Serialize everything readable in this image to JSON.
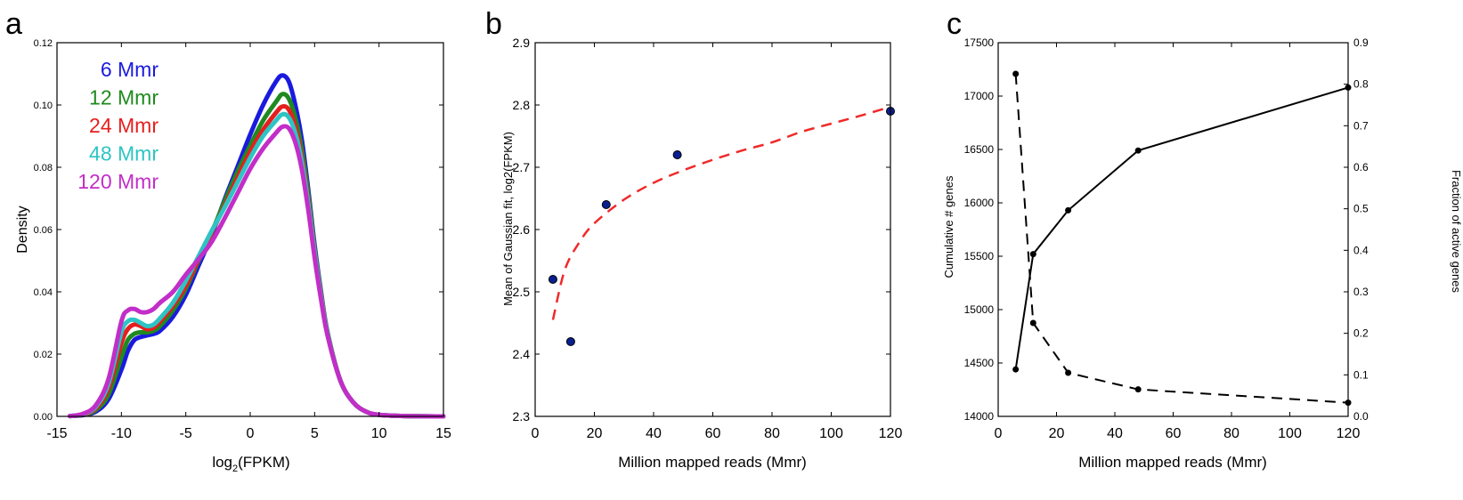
{
  "chart_data": [
    {
      "panel_letter": "a",
      "type": "line",
      "xlabel_base": "log",
      "xlabel_sub": "2",
      "xlabel_rest": "(FPKM)",
      "ylabel": "Density",
      "xlim": [
        -15,
        15
      ],
      "ylim": [
        0,
        0.12
      ],
      "xticks": [
        -15,
        -10,
        -5,
        0,
        5,
        10,
        15
      ],
      "yticks": [
        "0.00",
        "0.02",
        "0.04",
        "0.06",
        "0.08",
        "0.10",
        "0.12"
      ],
      "x": [
        -14,
        -13,
        -12,
        -11,
        -10,
        -9.5,
        -9,
        -8.5,
        -8,
        -7.5,
        -7,
        -6,
        -5,
        -4,
        -3,
        -2,
        -1,
        0,
        1,
        2,
        2.5,
        3,
        3.5,
        4,
        4.5,
        5,
        5.5,
        6,
        7,
        8,
        9,
        10,
        12,
        15
      ],
      "series": [
        {
          "name": "6 Mmr",
          "color": "#1a1adf",
          "values": [
            0.0001,
            0.0004,
            0.0015,
            0.0055,
            0.015,
            0.021,
            0.0245,
            0.0255,
            0.026,
            0.0265,
            0.0275,
            0.032,
            0.039,
            0.0485,
            0.058,
            0.0695,
            0.08,
            0.0905,
            0.1,
            0.1075,
            0.1095,
            0.1075,
            0.1,
            0.089,
            0.073,
            0.055,
            0.04,
            0.027,
            0.0115,
            0.0045,
            0.0015,
            0.0005,
            0.0001,
            0.0
          ]
        },
        {
          "name": "12 Mmr",
          "color": "#1f8a1f",
          "values": [
            0.0001,
            0.0005,
            0.002,
            0.007,
            0.019,
            0.0245,
            0.0265,
            0.027,
            0.027,
            0.0275,
            0.029,
            0.034,
            0.041,
            0.05,
            0.059,
            0.069,
            0.0785,
            0.087,
            0.095,
            0.101,
            0.1035,
            0.102,
            0.096,
            0.086,
            0.0715,
            0.054,
            0.0395,
            0.027,
            0.0115,
            0.0045,
            0.0015,
            0.0005,
            0.0001,
            0.0
          ]
        },
        {
          "name": "24 Mmr",
          "color": "#e61e1e",
          "values": [
            0.0001,
            0.0006,
            0.0025,
            0.009,
            0.0235,
            0.028,
            0.0295,
            0.029,
            0.028,
            0.0285,
            0.0305,
            0.0355,
            0.042,
            0.0505,
            0.059,
            0.0675,
            0.0765,
            0.085,
            0.092,
            0.0975,
            0.0995,
            0.0985,
            0.093,
            0.0835,
            0.0695,
            0.053,
            0.039,
            0.0265,
            0.0115,
            0.0045,
            0.0015,
            0.0005,
            0.0001,
            0.0
          ]
        },
        {
          "name": "48 Mmr",
          "color": "#2ec4c4",
          "values": [
            0.0001,
            0.0007,
            0.003,
            0.0105,
            0.027,
            0.0305,
            0.031,
            0.03,
            0.029,
            0.0295,
            0.0315,
            0.0365,
            0.0435,
            0.0515,
            0.0595,
            0.067,
            0.075,
            0.083,
            0.09,
            0.095,
            0.097,
            0.096,
            0.091,
            0.082,
            0.0685,
            0.0525,
            0.0385,
            0.0265,
            0.0115,
            0.0045,
            0.0015,
            0.0005,
            0.0001,
            0.0
          ]
        },
        {
          "name": "120 Mmr",
          "color": "#c22ec7",
          "values": [
            0.0001,
            0.0008,
            0.0035,
            0.012,
            0.0305,
            0.034,
            0.0345,
            0.0335,
            0.0335,
            0.0345,
            0.0365,
            0.04,
            0.0455,
            0.0505,
            0.056,
            0.0635,
            0.0715,
            0.0795,
            0.086,
            0.091,
            0.093,
            0.0925,
            0.088,
            0.0795,
            0.0665,
            0.051,
            0.0375,
            0.026,
            0.0115,
            0.0045,
            0.0015,
            0.0005,
            0.0001,
            0.0
          ]
        }
      ],
      "legend_placement": "top-left"
    },
    {
      "panel_letter": "b",
      "type": "scatter",
      "xlabel": "Million mapped reads (Mmr)",
      "ylabel": "Mean of Gaussian fit, log2(FPKM)",
      "xlim": [
        0,
        120
      ],
      "ylim": [
        2.3,
        2.9
      ],
      "xticks": [
        0,
        20,
        40,
        60,
        80,
        100,
        120
      ],
      "yticks": [
        "2.3",
        "2.4",
        "2.5",
        "2.6",
        "2.7",
        "2.8",
        "2.9"
      ],
      "points": {
        "x": [
          6,
          12,
          24,
          48,
          120
        ],
        "y": [
          2.52,
          2.42,
          2.64,
          2.72,
          2.79
        ]
      },
      "fit": {
        "style": "dashed",
        "color": "#ef2a2a",
        "x": [
          6,
          10,
          15,
          20,
          30,
          40,
          50,
          60,
          70,
          80,
          90,
          100,
          110,
          120
        ],
        "y": [
          2.455,
          2.535,
          2.58,
          2.61,
          2.648,
          2.675,
          2.695,
          2.712,
          2.727,
          2.74,
          2.757,
          2.77,
          2.783,
          2.797
        ]
      }
    },
    {
      "panel_letter": "c",
      "type": "line",
      "xlabel": "Million mapped reads (Mmr)",
      "ylabel_left": "Cumulative # genes",
      "ylabel_right": "Fraction of active genes",
      "xlim": [
        0,
        120
      ],
      "ylim_left": [
        14000,
        17500
      ],
      "ylim_right": [
        0,
        0.9
      ],
      "xticks": [
        0,
        20,
        40,
        60,
        80,
        100,
        120
      ],
      "yticks_left": [
        "14000",
        "14500",
        "15000",
        "15500",
        "16000",
        "16500",
        "17000",
        "17500"
      ],
      "yticks_right": [
        "0.0",
        "0.1",
        "0.2",
        "0.3",
        "0.4",
        "0.5",
        "0.6",
        "0.7",
        "0.8",
        "0.9"
      ],
      "series": [
        {
          "name": "Cumulative # genes",
          "style": "solid",
          "axis": "left",
          "x": [
            6,
            12,
            24,
            48,
            120
          ],
          "values": [
            14440,
            15520,
            15930,
            16490,
            17080
          ]
        },
        {
          "name": "Fraction of active genes",
          "style": "dashed",
          "axis": "right",
          "x": [
            6,
            12,
            24,
            48,
            120
          ],
          "values": [
            0.825,
            0.225,
            0.105,
            0.065,
            0.033
          ]
        }
      ]
    }
  ]
}
